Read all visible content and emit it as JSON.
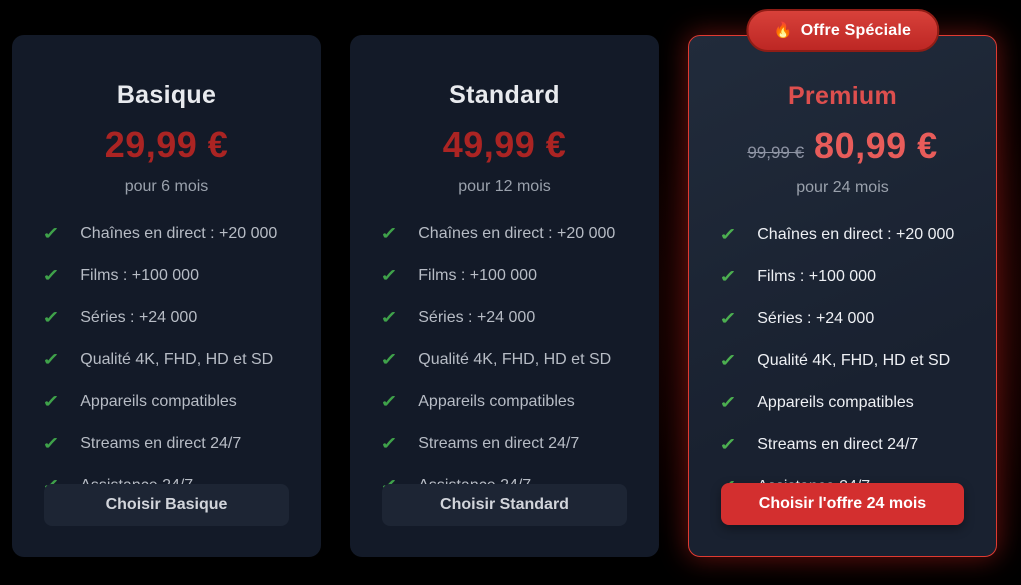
{
  "icons": {
    "check": "✓",
    "fire": "🔥"
  },
  "badge": {
    "label": "Offre Spéciale"
  },
  "colors": {
    "page_bg": "#000000",
    "card_bg": "#131a28",
    "accent_red": "#d32f2f",
    "price_red": "#ab2423",
    "premium_red": "#e85c5a",
    "check_green": "#43a047"
  },
  "plans": [
    {
      "name": "Basique",
      "price": "29,99 €",
      "duration": "pour 6 mois",
      "features": [
        "Chaînes en direct : +20 000",
        "Films : +100 000",
        "Séries : +24 000",
        "Qualité 4K, FHD, HD et SD",
        "Appareils compatibles",
        "Streams en direct 24/7",
        "Assistance 24/7"
      ],
      "cta": "Choisir Basique"
    },
    {
      "name": "Standard",
      "price": "49,99 €",
      "duration": "pour 12 mois",
      "features": [
        "Chaînes en direct : +20 000",
        "Films : +100 000",
        "Séries : +24 000",
        "Qualité 4K, FHD, HD et SD",
        "Appareils compatibles",
        "Streams en direct 24/7",
        "Assistance 24/7"
      ],
      "cta": "Choisir Standard"
    },
    {
      "name": "Premium",
      "old_price": "99,99 €",
      "price": "80,99 €",
      "duration": "pour 24 mois",
      "features": [
        "Chaînes en direct : +20 000",
        "Films : +100 000",
        "Séries : +24 000",
        "Qualité 4K, FHD, HD et SD",
        "Appareils compatibles",
        "Streams en direct 24/7",
        "Assistance 24/7"
      ],
      "cta": "Choisir l'offre 24 mois"
    }
  ]
}
